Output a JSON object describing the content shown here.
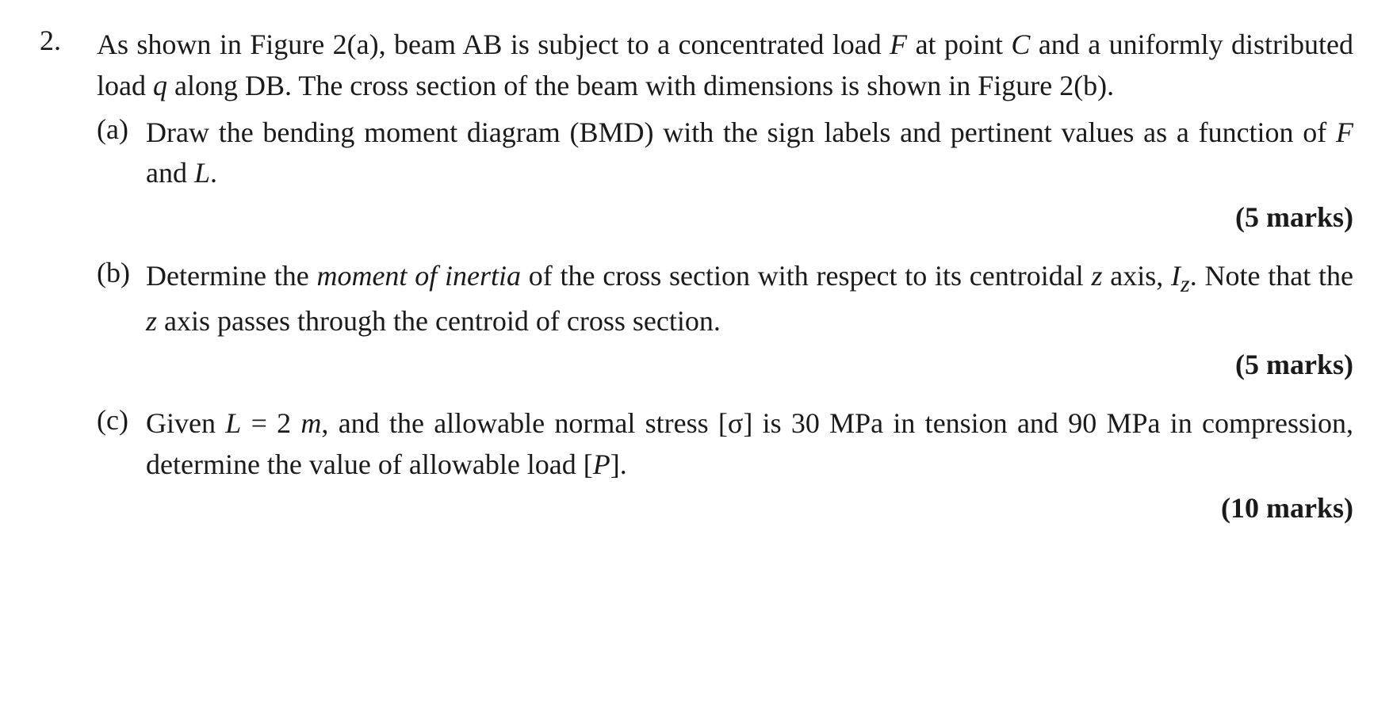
{
  "question": {
    "number": "2.",
    "intro_part1": "As shown in Figure 2(a), beam AB is subject to a concentrated load ",
    "intro_F": "F",
    "intro_part2": " at point ",
    "intro_C": "C",
    "intro_part3": " and a uniformly distributed load ",
    "intro_q": "q",
    "intro_part4": " along DB. The cross section of the beam with dimensions is shown in Figure 2(b).",
    "subparts": {
      "a": {
        "label": "(a)",
        "text_part1": "Draw the bending moment diagram (BMD) with the sign labels and pertinent values as a function of ",
        "text_F": "F",
        "text_part2": " and ",
        "text_L": "L",
        "text_part3": ".",
        "marks": "(5 marks)"
      },
      "b": {
        "label": "(b)",
        "text_part1": "Determine the ",
        "text_italic": "moment of inertia",
        "text_part2": " of the cross section with respect to its centroidal ",
        "text_z1": "z",
        "text_part3": " axis, ",
        "text_Iz": "I",
        "text_Iz_sub": "z",
        "text_part4": ". Note that the ",
        "text_z2": "z",
        "text_part5": " axis passes through the centroid of cross section.",
        "marks": "(5 marks)"
      },
      "c": {
        "label": "(c)",
        "text_part1": "Given ",
        "text_L": "L",
        "text_part2": " = 2 ",
        "text_m": "m",
        "text_part3": ", and the allowable normal stress [σ] is 30 MPa in tension and 90 MPa in compression, determine the value of allowable load [",
        "text_P": "P",
        "text_part4": "].",
        "marks": "(10 marks)"
      }
    }
  },
  "styling": {
    "background_color": "#ffffff",
    "text_color": "#1a1a1a",
    "font_family": "Times New Roman",
    "body_fontsize": 36,
    "line_height": 1.42,
    "marks_fontweight": "bold"
  }
}
